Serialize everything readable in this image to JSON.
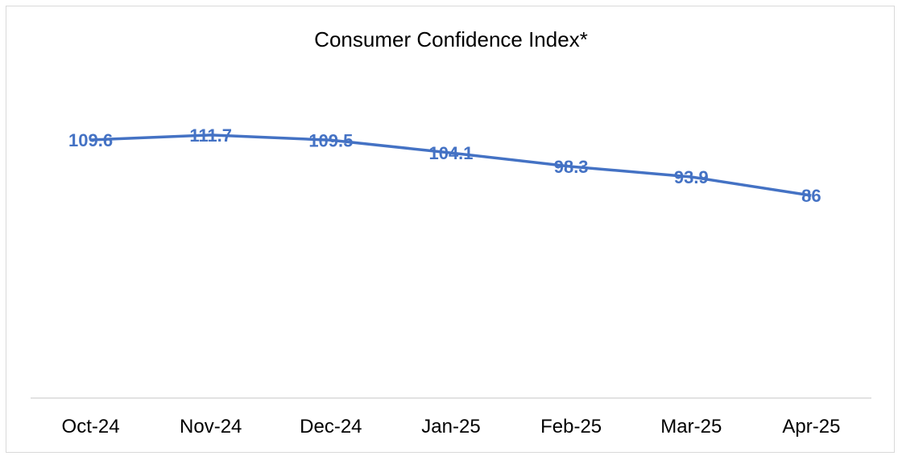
{
  "chart_data": {
    "type": "line",
    "title": "Consumer Confidence Index*",
    "xlabel": "",
    "ylabel": "",
    "categories": [
      "Oct-24",
      "Nov-24",
      "Dec-24",
      "Jan-25",
      "Feb-25",
      "Mar-25",
      "Apr-25"
    ],
    "series": [
      {
        "values": [
          109.6,
          111.7,
          109.5,
          104.1,
          98.3,
          93.9,
          86
        ],
        "labels": [
          "109.6",
          "111.7",
          "109.5",
          "104.1",
          "98.3",
          "93.9",
          "86"
        ],
        "color": "#4472c4"
      }
    ],
    "ylim": [
      0,
      140
    ],
    "grid": false,
    "legend": "none",
    "axis_color": "#d9d9d9"
  }
}
